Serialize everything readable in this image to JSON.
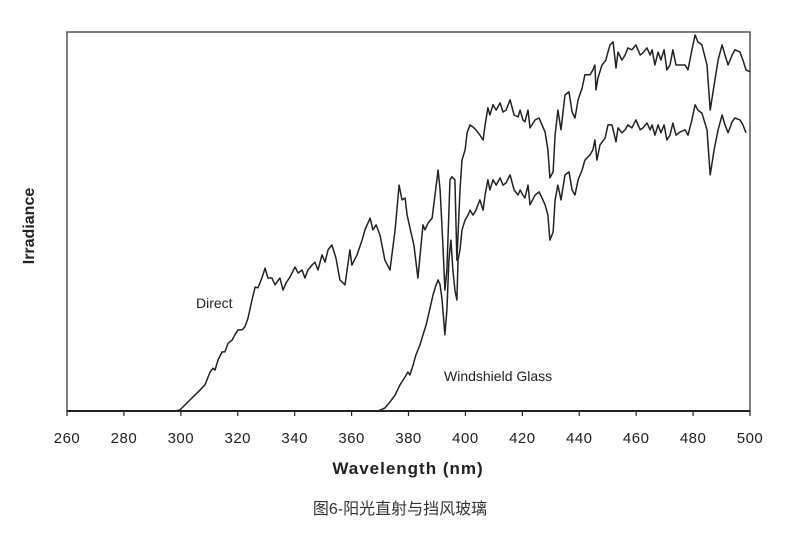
{
  "chart_data": {
    "type": "line",
    "title": "",
    "xlabel": "Wavelength (nm)",
    "ylabel": "Irradiance",
    "xlim": [
      260,
      500
    ],
    "ylim": [
      0,
      100
    ],
    "x_ticks": [
      260,
      280,
      300,
      320,
      340,
      360,
      380,
      400,
      420,
      440,
      460,
      480,
      500
    ],
    "y_ticks": [],
    "grid": false,
    "legend": "none (inline labels)",
    "line_color": "#222222",
    "annotations": [
      {
        "text": "Direct",
        "series": 0
      },
      {
        "text": "Windshield Glass",
        "series": 1
      }
    ],
    "series": [
      {
        "name": "Direct",
        "points": [
          [
            260,
            0
          ],
          [
            298,
            0
          ],
          [
            299.7,
            0.3
          ],
          [
            303.2,
            2.9
          ],
          [
            306.7,
            5.5
          ],
          [
            308.5,
            6.9
          ],
          [
            310.3,
            10.3
          ],
          [
            311.3,
            11.3
          ],
          [
            312,
            10.8
          ],
          [
            313.1,
            13.5
          ],
          [
            314.5,
            15.6
          ],
          [
            315.5,
            15.6
          ],
          [
            316.6,
            17.9
          ],
          [
            318,
            18.7
          ],
          [
            319,
            20.1
          ],
          [
            320.1,
            21.4
          ],
          [
            321.5,
            21.4
          ],
          [
            322.5,
            22.2
          ],
          [
            323.6,
            24.5
          ],
          [
            325,
            29.3
          ],
          [
            326.1,
            32.7
          ],
          [
            327.1,
            32.5
          ],
          [
            328.5,
            35.1
          ],
          [
            329.6,
            37.7
          ],
          [
            330.6,
            35.1
          ],
          [
            332,
            35.1
          ],
          [
            333.1,
            33.3
          ],
          [
            334.8,
            35.1
          ],
          [
            335.9,
            31.9
          ],
          [
            337,
            33.8
          ],
          [
            338.4,
            35.4
          ],
          [
            340.1,
            38
          ],
          [
            341.2,
            36.4
          ],
          [
            342.6,
            37.2
          ],
          [
            343.6,
            35.1
          ],
          [
            344.7,
            37.2
          ],
          [
            346.1,
            38.5
          ],
          [
            347.1,
            39.3
          ],
          [
            348.2,
            37.2
          ],
          [
            349.6,
            41.2
          ],
          [
            350.7,
            39.3
          ],
          [
            351.7,
            42.5
          ],
          [
            353.1,
            43.8
          ],
          [
            354.5,
            40.4
          ],
          [
            355.9,
            34.6
          ],
          [
            357.7,
            33.3
          ],
          [
            359.4,
            42.5
          ],
          [
            360.1,
            38.5
          ],
          [
            361.9,
            41.2
          ],
          [
            363.7,
            45.1
          ],
          [
            364.7,
            47.8
          ],
          [
            366.5,
            50.9
          ],
          [
            367.5,
            47.8
          ],
          [
            368.6,
            49.1
          ],
          [
            370,
            46.4
          ],
          [
            371.7,
            39.8
          ],
          [
            373.5,
            37.2
          ],
          [
            375.3,
            47.8
          ],
          [
            376.7,
            59.6
          ],
          [
            377.7,
            55.7
          ],
          [
            378.8,
            56.2
          ],
          [
            379.5,
            51.7
          ],
          [
            380.9,
            47
          ],
          [
            381.9,
            43.8
          ],
          [
            383.3,
            35.1
          ],
          [
            385.1,
            49.1
          ],
          [
            385.8,
            47.8
          ],
          [
            386.9,
            49.6
          ],
          [
            388.3,
            50.9
          ],
          [
            389.3,
            57
          ],
          [
            390.4,
            63.6
          ],
          [
            391.1,
            58.3
          ],
          [
            392.1,
            43.8
          ],
          [
            392.8,
            31.9
          ],
          [
            393.5,
            37.2
          ],
          [
            394.6,
            61
          ],
          [
            395.3,
            61.8
          ],
          [
            396.3,
            61
          ],
          [
            397,
            39.8
          ],
          [
            398.1,
            58.3
          ],
          [
            398.8,
            66.2
          ],
          [
            399.9,
            68.9
          ],
          [
            400.6,
            73.4
          ],
          [
            401.6,
            75.5
          ],
          [
            402.7,
            74.9
          ],
          [
            403.7,
            74.2
          ],
          [
            405.1,
            72.8
          ],
          [
            406.2,
            71.5
          ],
          [
            406.9,
            75.5
          ],
          [
            407.9,
            80
          ],
          [
            408.6,
            78.1
          ],
          [
            409.7,
            80.8
          ],
          [
            410.8,
            79.4
          ],
          [
            412.2,
            81.3
          ],
          [
            413.2,
            78.9
          ],
          [
            414.3,
            79.4
          ],
          [
            415.7,
            82.1
          ],
          [
            417.1,
            78.1
          ],
          [
            418.5,
            77.6
          ],
          [
            419.2,
            79.4
          ],
          [
            420.2,
            76.8
          ],
          [
            420.9,
            76.3
          ],
          [
            422,
            79.4
          ],
          [
            422.7,
            74.7
          ],
          [
            424.5,
            76.8
          ],
          [
            425.9,
            77.3
          ],
          [
            426.9,
            75.5
          ],
          [
            428,
            73.6
          ],
          [
            429,
            68.9
          ],
          [
            429.7,
            61.5
          ],
          [
            430.8,
            63.1
          ],
          [
            431.5,
            72.8
          ],
          [
            432.5,
            79.4
          ],
          [
            433.6,
            74.2
          ],
          [
            435,
            83.4
          ],
          [
            436.4,
            84.2
          ],
          [
            437.5,
            78.9
          ],
          [
            438.5,
            77.3
          ],
          [
            439.6,
            82.1
          ],
          [
            441,
            85.2
          ],
          [
            442,
            88.7
          ],
          [
            443.8,
            88.7
          ],
          [
            444.8,
            90
          ],
          [
            445.5,
            91.3
          ],
          [
            445.9,
            84.7
          ],
          [
            446.6,
            87.9
          ],
          [
            448,
            91.3
          ],
          [
            449.4,
            92.6
          ],
          [
            449.8,
            93.9
          ],
          [
            450.8,
            96.6
          ],
          [
            451.9,
            97.4
          ],
          [
            452.9,
            90.5
          ],
          [
            453.6,
            94.7
          ],
          [
            455,
            92.6
          ],
          [
            456.1,
            93.9
          ],
          [
            457.1,
            95.8
          ],
          [
            458.5,
            95.3
          ],
          [
            459.9,
            96.6
          ],
          [
            461.4,
            93.9
          ],
          [
            462.4,
            94.5
          ],
          [
            463.8,
            95.8
          ],
          [
            464.9,
            93.9
          ],
          [
            465.6,
            95.3
          ],
          [
            466.6,
            91.3
          ],
          [
            467.7,
            94.7
          ],
          [
            468.7,
            92.6
          ],
          [
            469.8,
            95.3
          ],
          [
            470.8,
            90
          ],
          [
            471.9,
            91.3
          ],
          [
            472.9,
            95.3
          ],
          [
            474,
            91.3
          ],
          [
            475.4,
            91.3
          ],
          [
            477.2,
            91.3
          ],
          [
            478.2,
            90
          ],
          [
            479.6,
            95.3
          ],
          [
            480.7,
            99.2
          ],
          [
            481.7,
            97.4
          ],
          [
            483.1,
            96.6
          ],
          [
            484.9,
            91.3
          ],
          [
            486,
            79.4
          ],
          [
            487.4,
            86
          ],
          [
            488.8,
            92.6
          ],
          [
            490.2,
            96.6
          ],
          [
            491.2,
            93.9
          ],
          [
            492.3,
            91.3
          ],
          [
            493.7,
            93.9
          ],
          [
            494.7,
            95.3
          ],
          [
            496.5,
            94.7
          ],
          [
            497.5,
            92.6
          ],
          [
            498.6,
            90
          ],
          [
            500,
            89.5
          ]
        ]
      },
      {
        "name": "Windshield Glass",
        "points": [
          [
            260,
            0
          ],
          [
            369.3,
            0
          ],
          [
            371.7,
            0.8
          ],
          [
            373.5,
            2.4
          ],
          [
            375.3,
            4.2
          ],
          [
            377,
            6.9
          ],
          [
            378.8,
            9
          ],
          [
            379.8,
            10.3
          ],
          [
            380.5,
            9.5
          ],
          [
            381.6,
            12.1
          ],
          [
            382.6,
            14.8
          ],
          [
            384,
            17.4
          ],
          [
            385.1,
            20.1
          ],
          [
            386.2,
            22.7
          ],
          [
            387.6,
            27.2
          ],
          [
            388.6,
            30.6
          ],
          [
            389.7,
            33.3
          ],
          [
            390.4,
            34.6
          ],
          [
            391.1,
            33.3
          ],
          [
            391.8,
            29.3
          ],
          [
            392.8,
            20.1
          ],
          [
            393.5,
            26.7
          ],
          [
            394.2,
            39.8
          ],
          [
            394.9,
            45.1
          ],
          [
            395.6,
            37.2
          ],
          [
            396.3,
            31.9
          ],
          [
            397,
            29.3
          ],
          [
            397.4,
            39.8
          ],
          [
            398.1,
            42.5
          ],
          [
            398.8,
            47.8
          ],
          [
            399.9,
            50.4
          ],
          [
            400.9,
            51.7
          ],
          [
            401.6,
            53
          ],
          [
            402.7,
            51.7
          ],
          [
            403.7,
            53
          ],
          [
            405.1,
            55.7
          ],
          [
            406.2,
            53
          ],
          [
            406.9,
            57
          ],
          [
            407.9,
            61
          ],
          [
            408.6,
            58.3
          ],
          [
            409.7,
            61
          ],
          [
            410.8,
            59.6
          ],
          [
            412.2,
            61.5
          ],
          [
            413.2,
            59.6
          ],
          [
            414.3,
            60.2
          ],
          [
            415.7,
            62.3
          ],
          [
            417.1,
            58.3
          ],
          [
            418.5,
            57
          ],
          [
            419.2,
            58.3
          ],
          [
            420.2,
            57
          ],
          [
            420.9,
            56.2
          ],
          [
            422,
            59.6
          ],
          [
            422.7,
            54.4
          ],
          [
            424.5,
            57
          ],
          [
            425.9,
            57.8
          ],
          [
            426.9,
            56.2
          ],
          [
            428,
            54.4
          ],
          [
            429,
            51.7
          ],
          [
            429.7,
            45.1
          ],
          [
            430.8,
            47.2
          ],
          [
            431.5,
            55.7
          ],
          [
            432.5,
            59.6
          ],
          [
            433.6,
            55.7
          ],
          [
            435,
            62.3
          ],
          [
            436.4,
            63.1
          ],
          [
            437.5,
            58.3
          ],
          [
            438.5,
            57
          ],
          [
            439.6,
            61
          ],
          [
            441,
            63.6
          ],
          [
            442,
            66.2
          ],
          [
            443.8,
            67.6
          ],
          [
            444.8,
            68.9
          ],
          [
            445.5,
            71.5
          ],
          [
            446.2,
            66.2
          ],
          [
            447.3,
            70.2
          ],
          [
            449.1,
            72
          ],
          [
            450.1,
            75.5
          ],
          [
            451.5,
            75.5
          ],
          [
            452.9,
            71
          ],
          [
            453.6,
            74.7
          ],
          [
            455,
            73.4
          ],
          [
            456.1,
            74.2
          ],
          [
            457.1,
            75.5
          ],
          [
            458.5,
            74.7
          ],
          [
            459.9,
            76.8
          ],
          [
            461.4,
            74.2
          ],
          [
            462.4,
            74.7
          ],
          [
            463.8,
            76
          ],
          [
            464.9,
            74.2
          ],
          [
            465.6,
            75.5
          ],
          [
            466.6,
            72.8
          ],
          [
            467.7,
            75.5
          ],
          [
            468.7,
            73.4
          ],
          [
            469.8,
            75.5
          ],
          [
            470.8,
            71.5
          ],
          [
            471.9,
            72.8
          ],
          [
            472.9,
            76
          ],
          [
            474,
            72.8
          ],
          [
            475.4,
            73.6
          ],
          [
            477.2,
            74.2
          ],
          [
            478.2,
            72.8
          ],
          [
            479.6,
            76.8
          ],
          [
            480.7,
            80.8
          ],
          [
            481.7,
            79.4
          ],
          [
            483.1,
            78.6
          ],
          [
            484.9,
            74.2
          ],
          [
            486,
            62.3
          ],
          [
            487.4,
            68.9
          ],
          [
            488.8,
            74.2
          ],
          [
            490.2,
            78.1
          ],
          [
            491.2,
            75.5
          ],
          [
            492.3,
            73.4
          ],
          [
            493.7,
            76.3
          ],
          [
            494.7,
            77.3
          ],
          [
            496.5,
            76.8
          ],
          [
            497.5,
            75.5
          ],
          [
            498.6,
            73.4
          ]
        ]
      }
    ]
  },
  "caption": "图6-阳光直射与挡风玻璃"
}
